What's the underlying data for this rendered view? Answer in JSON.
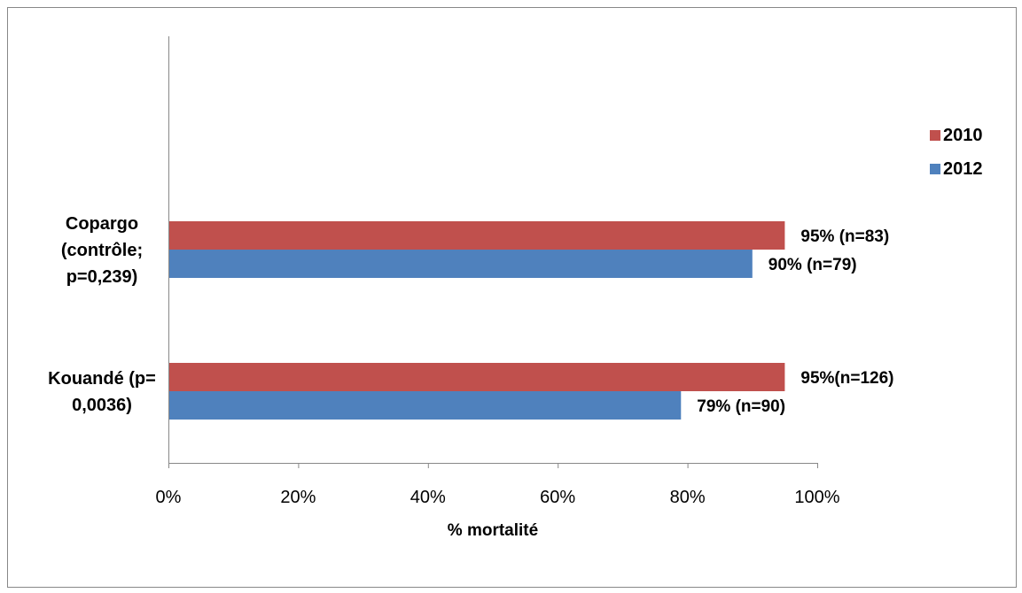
{
  "chart_data": {
    "type": "bar",
    "orientation": "horizontal",
    "categories": [
      [
        "Copargo",
        "(contrôle;",
        "p=0,239)"
      ],
      [
        "Kouandé (p=",
        "0,0036)"
      ]
    ],
    "series": [
      {
        "name": "2010",
        "color": "#C0504D",
        "values": [
          95,
          95
        ],
        "labels": [
          "95% (n=83)",
          "95%(n=126)"
        ]
      },
      {
        "name": "2012",
        "color": "#4F81BD",
        "values": [
          90,
          79
        ],
        "labels": [
          "90% (n=79)",
          "79% (n=90)"
        ]
      }
    ],
    "xlabel": "% mortalité",
    "ylabel": "",
    "xlim": [
      0,
      100
    ],
    "xticks": [
      0,
      20,
      40,
      60,
      80,
      100
    ],
    "xtick_labels": [
      "0%",
      "20%",
      "40%",
      "60%",
      "80%",
      "100%"
    ],
    "grid": false,
    "legend_position": "right"
  }
}
